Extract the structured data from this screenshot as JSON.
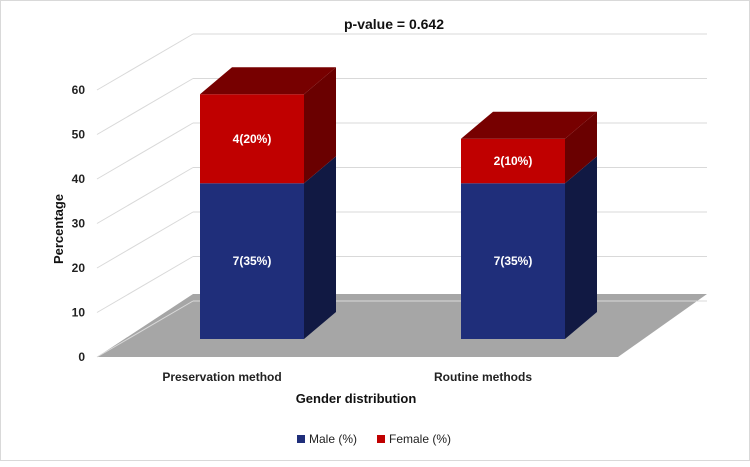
{
  "chart_data": {
    "type": "bar",
    "stacked": true,
    "three_d": true,
    "title": "p-value = 0.642",
    "xlabel": "Gender distribution",
    "ylabel": "Percentage",
    "ylim": [
      0,
      60
    ],
    "yticks": [
      0,
      10,
      20,
      30,
      40,
      50,
      60
    ],
    "grid": true,
    "legend_position": "bottom",
    "categories": [
      "Preservation method",
      "Routine methods"
    ],
    "series": [
      {
        "name": "Male (%)",
        "color": "#1f2e7a",
        "values": [
          35,
          35
        ],
        "labels": [
          "7(35%)",
          "7(35%)"
        ]
      },
      {
        "name": "Female (%)",
        "color": "#c00000",
        "values": [
          20,
          10
        ],
        "labels": [
          "4(20%)",
          "2(10%)"
        ]
      }
    ]
  }
}
